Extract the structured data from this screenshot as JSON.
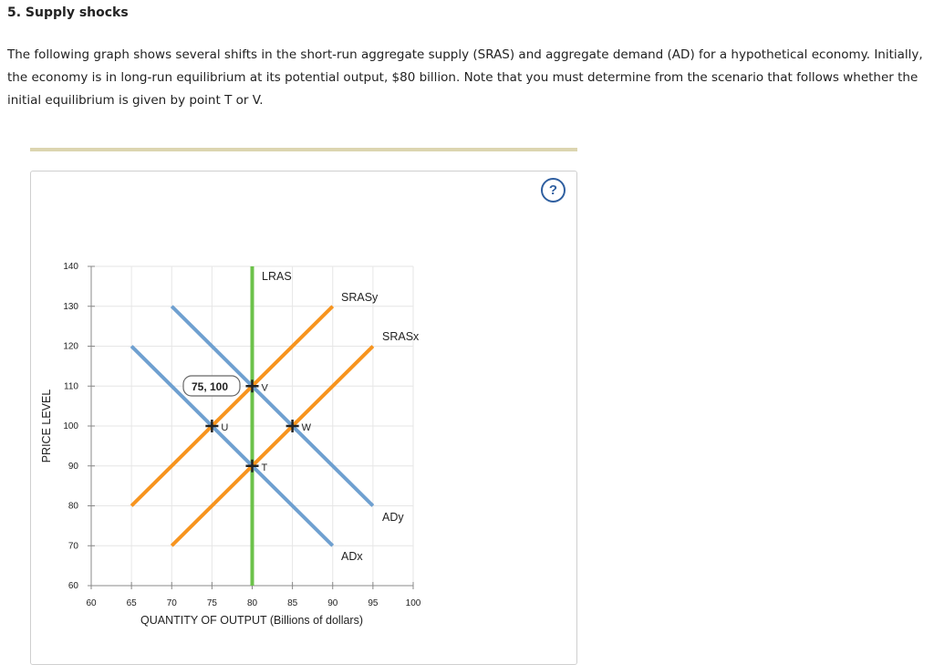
{
  "page": {
    "title": "5. Supply shocks",
    "intro": "The following graph shows several shifts in the short-run aggregate supply (SRAS) and aggregate demand (AD) for a hypothetical economy. Initially, the economy is in long-run equilibrium at its potential output, $80 billion. Note that you must determine from the scenario that follows whether the initial equilibrium is given by point T or V.",
    "help_label": "?"
  },
  "chart_data": {
    "type": "line",
    "xlabel": "QUANTITY OF OUTPUT (Billions of dollars)",
    "ylabel": "PRICE LEVEL",
    "xlim": [
      60,
      100
    ],
    "ylim": [
      60,
      140
    ],
    "x_ticks": [
      60,
      65,
      70,
      75,
      80,
      85,
      90,
      95,
      100
    ],
    "y_ticks": [
      60,
      70,
      80,
      90,
      100,
      110,
      120,
      130,
      140
    ],
    "grid": true,
    "series": [
      {
        "name": "LRAS",
        "color": "#6cc24a",
        "points": [
          [
            80,
            60
          ],
          [
            80,
            140
          ]
        ]
      },
      {
        "name": "SRASy",
        "color": "#f7941e",
        "points": [
          [
            65,
            80
          ],
          [
            90,
            130
          ]
        ]
      },
      {
        "name": "SRASx",
        "color": "#f7941e",
        "points": [
          [
            70,
            70
          ],
          [
            95,
            120
          ]
        ]
      },
      {
        "name": "ADy",
        "color": "#6fa0d0",
        "points": [
          [
            70,
            130
          ],
          [
            95,
            80
          ]
        ]
      },
      {
        "name": "ADx",
        "color": "#6fa0d0",
        "points": [
          [
            65,
            120
          ],
          [
            90,
            70
          ]
        ]
      }
    ],
    "points": [
      {
        "label": "T",
        "x": 80,
        "y": 90
      },
      {
        "label": "U",
        "x": 75,
        "y": 100
      },
      {
        "label": "V",
        "x": 80,
        "y": 110
      },
      {
        "label": "W",
        "x": 85,
        "y": 100
      }
    ],
    "tooltip": {
      "text": "75, 100"
    }
  }
}
